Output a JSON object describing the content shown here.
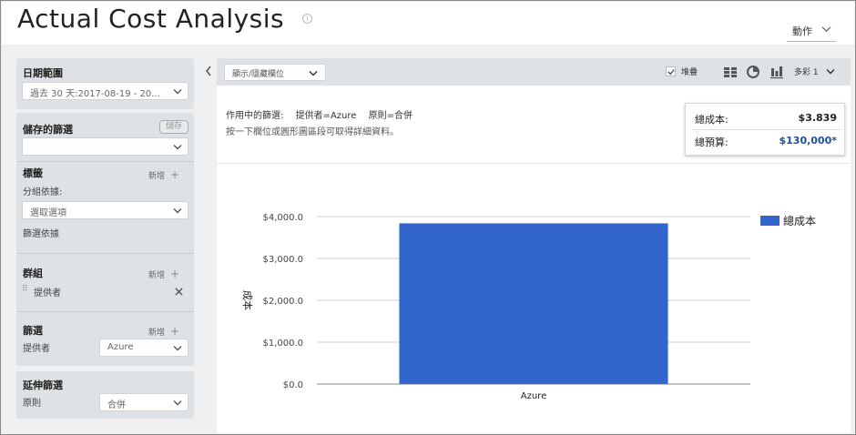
{
  "header": {
    "title": "Actual Cost Analysis",
    "info_glyph": "i",
    "actions_label": "動作"
  },
  "sidebar": {
    "date_range": {
      "title": "日期範圍",
      "value": "過去 30 天:2017-08-19 - 20..."
    },
    "saved_filters": {
      "title": "儲存的篩選",
      "save_label": "儲存",
      "value": ""
    },
    "tags": {
      "title": "標籤",
      "add_label": "新增",
      "group_by_label": "分組依據:",
      "select_placeholder": "選取選項",
      "filter_by_label": "篩選依據"
    },
    "groups": {
      "title": "群組",
      "add_label": "新增",
      "item_label": "提供者"
    },
    "filters": {
      "title": "篩選",
      "add_label": "新增",
      "item_label": "提供者",
      "item_value": "Azure"
    },
    "extended_filters": {
      "title": "延伸篩選",
      "item_label": "原則",
      "item_value": "合併"
    }
  },
  "toolbar": {
    "columns_select": "顯示/隱藏欄位",
    "stack_label": "堆疊",
    "stack_checked": true,
    "color_label": "多彩 1"
  },
  "main": {
    "active_filters_label": "作用中的篩選:",
    "filter_provider": "提供者=Azure",
    "filter_policy": "原則=合併",
    "hint": "按一下欄位或圓形圖區段可取得詳細資料。",
    "summary": {
      "total_cost_label": "總成本:",
      "total_cost_value": "$3.839",
      "total_budget_label": "總預算:",
      "total_budget_value": "$130,000*"
    }
  },
  "chart_data": {
    "type": "bar",
    "categories": [
      "Azure"
    ],
    "series": [
      {
        "name": "總成本",
        "values": [
          3839
        ],
        "color": "#3366cc"
      }
    ],
    "ylabel": "成本",
    "ylim": [
      0,
      4000
    ],
    "yticks": [
      0,
      1000,
      2000,
      3000,
      4000
    ],
    "ytick_labels": [
      "$0.0",
      "$1,000.0",
      "$2,000.0",
      "$3,000.0",
      "$4,000.0"
    ],
    "grid": true,
    "legend_position": "right"
  }
}
